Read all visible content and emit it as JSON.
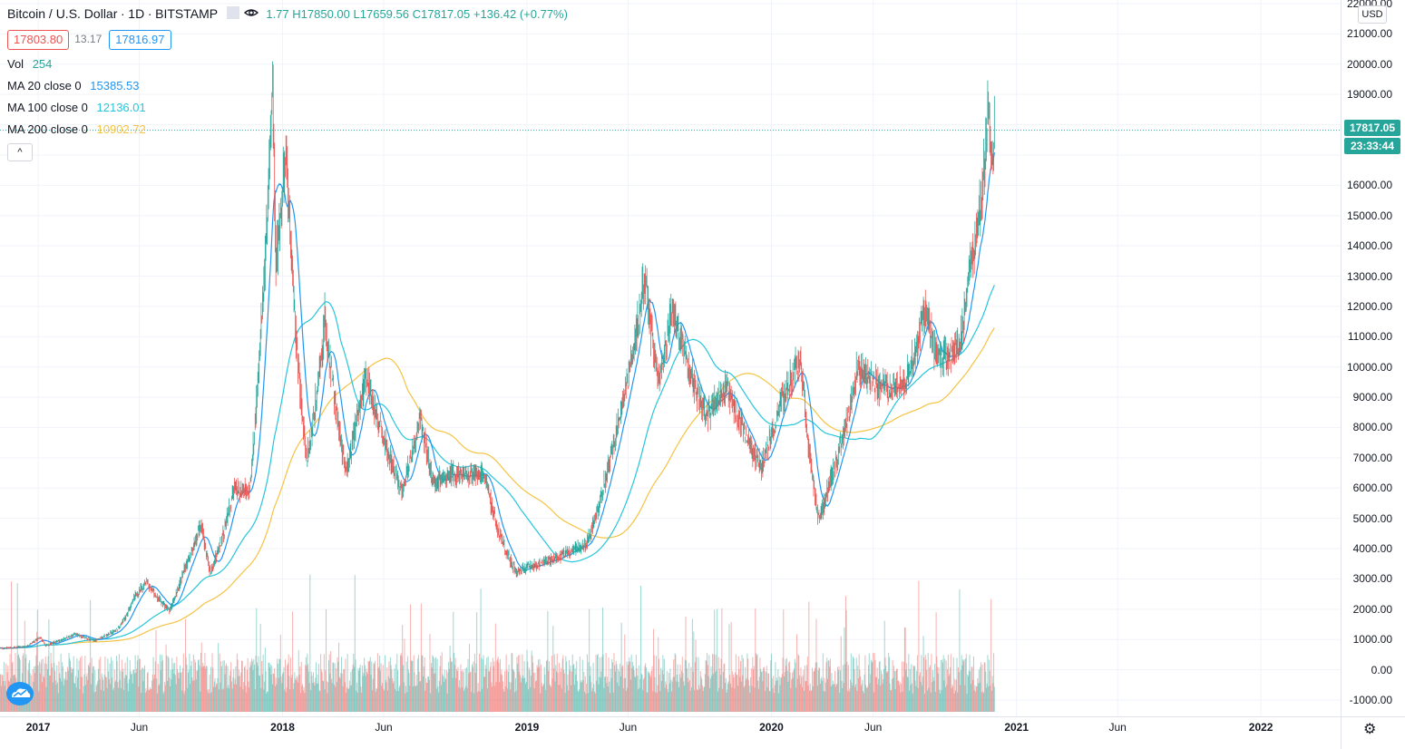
{
  "header": {
    "symbol": "Bitcoin / U.S. Dollar",
    "sep1": "·",
    "interval": "1D",
    "sep2": "·",
    "exchange": "BITSTAMP",
    "ohlc_o": "1.77",
    "ohlc_h": "H17850.00",
    "ohlc_l": "L17659.56",
    "ohlc_c": "C17817.05",
    "ohlc_change": "+136.42 (+0.77%)",
    "bid": "17803.80",
    "spread": "13.17",
    "ask": "17816.97"
  },
  "indicators": {
    "vol": {
      "name": "Vol",
      "value": "254"
    },
    "ma20": {
      "name": "MA 20 close 0",
      "value": "15385.53"
    },
    "ma100": {
      "name": "MA 100 close 0",
      "value": "12136.01"
    },
    "ma200": {
      "name": "MA 200 close 0",
      "value": "10902.72"
    },
    "collapse_label": "^"
  },
  "price_axis": {
    "currency": "USD",
    "labels": [
      "22000.00",
      "21000.00",
      "20000.00",
      "19000.00",
      "16000.00",
      "15000.00",
      "14000.00",
      "13000.00",
      "12000.00",
      "11000.00",
      "10000.00",
      "9000.00",
      "8000.00",
      "7000.00",
      "6000.00",
      "5000.00",
      "4000.00",
      "3000.00",
      "2000.00",
      "1000.00",
      "0.00",
      "-1000.00"
    ],
    "last_price": "17817.05",
    "countdown": "23:33:44"
  },
  "time_axis": {
    "labels": [
      "2017",
      "Jun",
      "2018",
      "Jun",
      "2019",
      "Jun",
      "2020",
      "Jun",
      "2021",
      "Jun",
      "2022"
    ]
  },
  "colors": {
    "up": "#26a69a",
    "down": "#ef5350",
    "ma20": "#2196f3",
    "ma100": "#26c6da",
    "ma200": "#f5c342",
    "grid": "#f0f3fa"
  },
  "icons": {
    "visibility": "eye-icon",
    "settings": "gear-icon",
    "logo": "tradingview-logo-icon"
  },
  "chart_data": {
    "type": "candlestick",
    "title": "Bitcoin / U.S. Dollar · 1D · BITSTAMP",
    "ylim": [
      -1000,
      22000
    ],
    "xlim": [
      "2016-11-05",
      "2022-04-30"
    ],
    "ylabel": "USD",
    "last_price": 17817.05,
    "price_path": [
      [
        "2016-11-05",
        700
      ],
      [
        "2016-12-15",
        780
      ],
      [
        "2017-01-04",
        1100
      ],
      [
        "2017-01-12",
        800
      ],
      [
        "2017-02-25",
        1180
      ],
      [
        "2017-03-25",
        960
      ],
      [
        "2017-04-30",
        1350
      ],
      [
        "2017-05-25",
        2400
      ],
      [
        "2017-06-12",
        2900
      ],
      [
        "2017-07-16",
        1950
      ],
      [
        "2017-08-05",
        3200
      ],
      [
        "2017-09-01",
        4850
      ],
      [
        "2017-09-15",
        3200
      ],
      [
        "2017-10-20",
        6000
      ],
      [
        "2017-11-12",
        5900
      ],
      [
        "2017-11-29",
        11000
      ],
      [
        "2017-12-17",
        19500
      ],
      [
        "2017-12-22",
        13500
      ],
      [
        "2018-01-06",
        17100
      ],
      [
        "2018-02-06",
        6900
      ],
      [
        "2018-03-05",
        11500
      ],
      [
        "2018-04-06",
        6600
      ],
      [
        "2018-05-05",
        9800
      ],
      [
        "2018-06-28",
        5900
      ],
      [
        "2018-07-25",
        8300
      ],
      [
        "2018-08-14",
        6200
      ],
      [
        "2018-09-20",
        6500
      ],
      [
        "2018-10-31",
        6400
      ],
      [
        "2018-11-20",
        4500
      ],
      [
        "2018-12-15",
        3250
      ],
      [
        "2019-02-08",
        3650
      ],
      [
        "2019-03-30",
        4100
      ],
      [
        "2019-05-14",
        7900
      ],
      [
        "2019-06-26",
        12900
      ],
      [
        "2019-07-16",
        9500
      ],
      [
        "2019-08-06",
        11900
      ],
      [
        "2019-09-24",
        8400
      ],
      [
        "2019-10-26",
        9300
      ],
      [
        "2019-12-17",
        6700
      ],
      [
        "2020-01-14",
        8800
      ],
      [
        "2020-02-13",
        10300
      ],
      [
        "2020-03-12",
        4900
      ],
      [
        "2020-03-31",
        6400
      ],
      [
        "2020-05-08",
        9900
      ],
      [
        "2020-06-25",
        9200
      ],
      [
        "2020-07-25",
        9700
      ],
      [
        "2020-08-17",
        12000
      ],
      [
        "2020-09-05",
        10200
      ],
      [
        "2020-10-07",
        10600
      ],
      [
        "2020-10-21",
        12900
      ],
      [
        "2020-11-11",
        15700
      ],
      [
        "2020-11-20",
        18700
      ],
      [
        "2020-11-26",
        16500
      ],
      [
        "2020-11-29",
        17817
      ]
    ]
  }
}
